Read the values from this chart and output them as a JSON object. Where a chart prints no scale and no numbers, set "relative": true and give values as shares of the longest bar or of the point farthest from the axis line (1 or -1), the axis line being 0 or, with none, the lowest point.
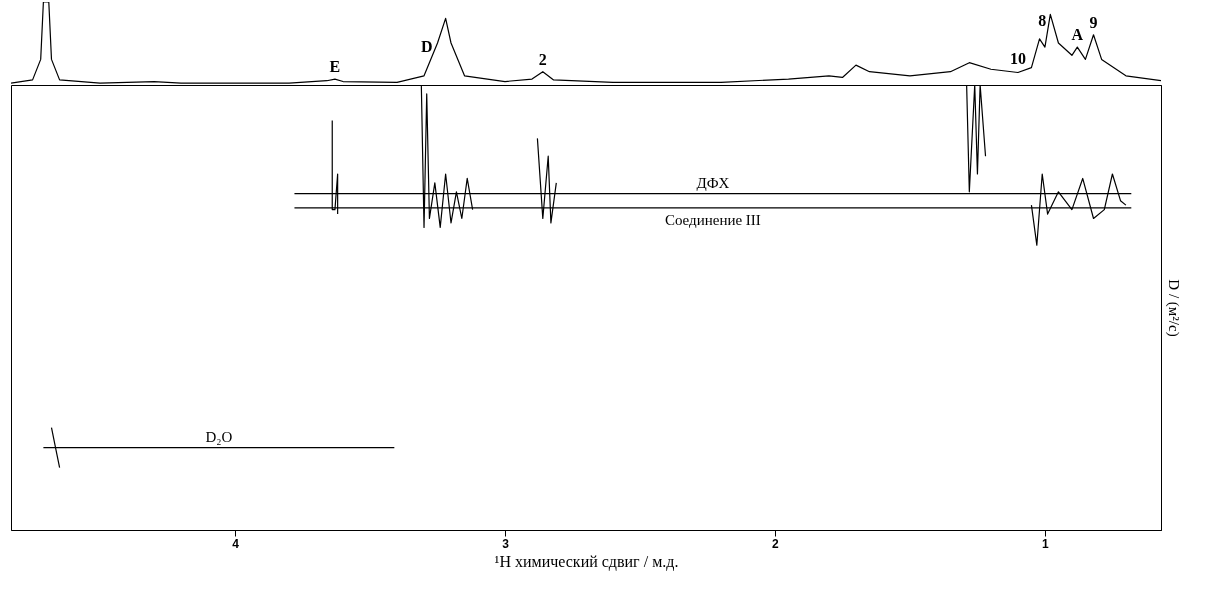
{
  "chart_data": [
    {
      "type": "line",
      "relative": true,
      "xlim": [
        4.83,
        0.57
      ],
      "tick_labels": false,
      "annotations": [
        {
          "text": "E",
          "x": 3.63,
          "y": 0.06
        },
        {
          "text": "D",
          "x": 3.29,
          "y": 0.3
        },
        {
          "text": "2",
          "x": 2.86,
          "y": 0.15
        },
        {
          "text": "10",
          "x": 1.1,
          "y": 0.16
        },
        {
          "text": "8",
          "x": 1.01,
          "y": 0.62
        },
        {
          "text": "A",
          "x": 0.88,
          "y": 0.45
        },
        {
          "text": "9",
          "x": 0.82,
          "y": 0.6
        }
      ],
      "series": [
        {
          "color": "#000000",
          "x": [
            4.83,
            4.75,
            4.72,
            4.71,
            4.69,
            4.68,
            4.65,
            4.5,
            4.3,
            4.2,
            3.8,
            3.66,
            3.63,
            3.6,
            3.4,
            3.3,
            3.25,
            3.22,
            3.2,
            3.15,
            3.0,
            2.9,
            2.86,
            2.82,
            2.6,
            2.2,
            1.95,
            1.8,
            1.75,
            1.7,
            1.65,
            1.5,
            1.35,
            1.28,
            1.2,
            1.1,
            1.05,
            1.02,
            1.0,
            0.98,
            0.95,
            0.9,
            0.88,
            0.85,
            0.82,
            0.79,
            0.7,
            0.57
          ],
          "values": [
            0.01,
            0.05,
            0.3,
            1.0,
            1.0,
            0.3,
            0.05,
            0.01,
            0.03,
            0.01,
            0.01,
            0.04,
            0.06,
            0.03,
            0.02,
            0.1,
            0.5,
            0.8,
            0.5,
            0.1,
            0.03,
            0.06,
            0.15,
            0.05,
            0.02,
            0.02,
            0.06,
            0.1,
            0.08,
            0.23,
            0.15,
            0.1,
            0.15,
            0.26,
            0.18,
            0.14,
            0.2,
            0.55,
            0.45,
            0.85,
            0.5,
            0.35,
            0.45,
            0.3,
            0.6,
            0.3,
            0.1,
            0.04
          ]
        }
      ]
    },
    {
      "type": "line",
      "relative": true,
      "xlim": [
        4.83,
        0.57
      ],
      "xticks": [
        4,
        3,
        2,
        1
      ],
      "xlabel": "¹H химический сдвиг / м.д.",
      "ylabel": "D / (м²/с)",
      "tick_labels": "x",
      "series": [
        {
          "name": "ДФХ",
          "color": "#000000",
          "x": [
            3.78,
            0.68
          ],
          "values": [
            0.756,
            0.756
          ]
        },
        {
          "name": "Соединение III",
          "color": "#000000",
          "x": [
            3.78,
            0.68
          ],
          "values": [
            0.724,
            0.724
          ]
        },
        {
          "name": "D₂O",
          "color": "#000000",
          "x": [
            4.71,
            3.41
          ],
          "values": [
            0.185,
            0.185
          ]
        },
        {
          "color": "#000000",
          "x": [
            3.64,
            3.64,
            3.63,
            3.62,
            3.62
          ],
          "values": [
            0.92,
            0.72,
            0.72,
            0.8,
            0.71
          ]
        },
        {
          "color": "#000000",
          "x": [
            3.31,
            3.3,
            3.29,
            3.28,
            3.26,
            3.24,
            3.22,
            3.2,
            3.18,
            3.16,
            3.14,
            3.12
          ],
          "values": [
            1.0,
            0.68,
            0.98,
            0.7,
            0.78,
            0.68,
            0.8,
            0.69,
            0.76,
            0.7,
            0.79,
            0.72
          ]
        },
        {
          "color": "#000000",
          "x": [
            2.88,
            2.86,
            2.84,
            2.83,
            2.81
          ],
          "values": [
            0.88,
            0.7,
            0.84,
            0.69,
            0.78
          ]
        },
        {
          "color": "#000000",
          "x": [
            1.29,
            1.28,
            1.26,
            1.25,
            1.24,
            1.22
          ],
          "values": [
            1.0,
            0.76,
            1.0,
            0.8,
            1.0,
            0.84
          ]
        },
        {
          "color": "#000000",
          "x": [
            1.05,
            1.03,
            1.01,
            0.99,
            0.95,
            0.9,
            0.86,
            0.82,
            0.78,
            0.75,
            0.72,
            0.7
          ],
          "values": [
            0.73,
            0.64,
            0.8,
            0.71,
            0.76,
            0.72,
            0.79,
            0.7,
            0.72,
            0.8,
            0.74,
            0.73
          ]
        },
        {
          "color": "#000000",
          "x": [
            4.68,
            4.66,
            4.65
          ],
          "values": [
            0.23,
            0.17,
            0.14
          ]
        }
      ]
    }
  ]
}
